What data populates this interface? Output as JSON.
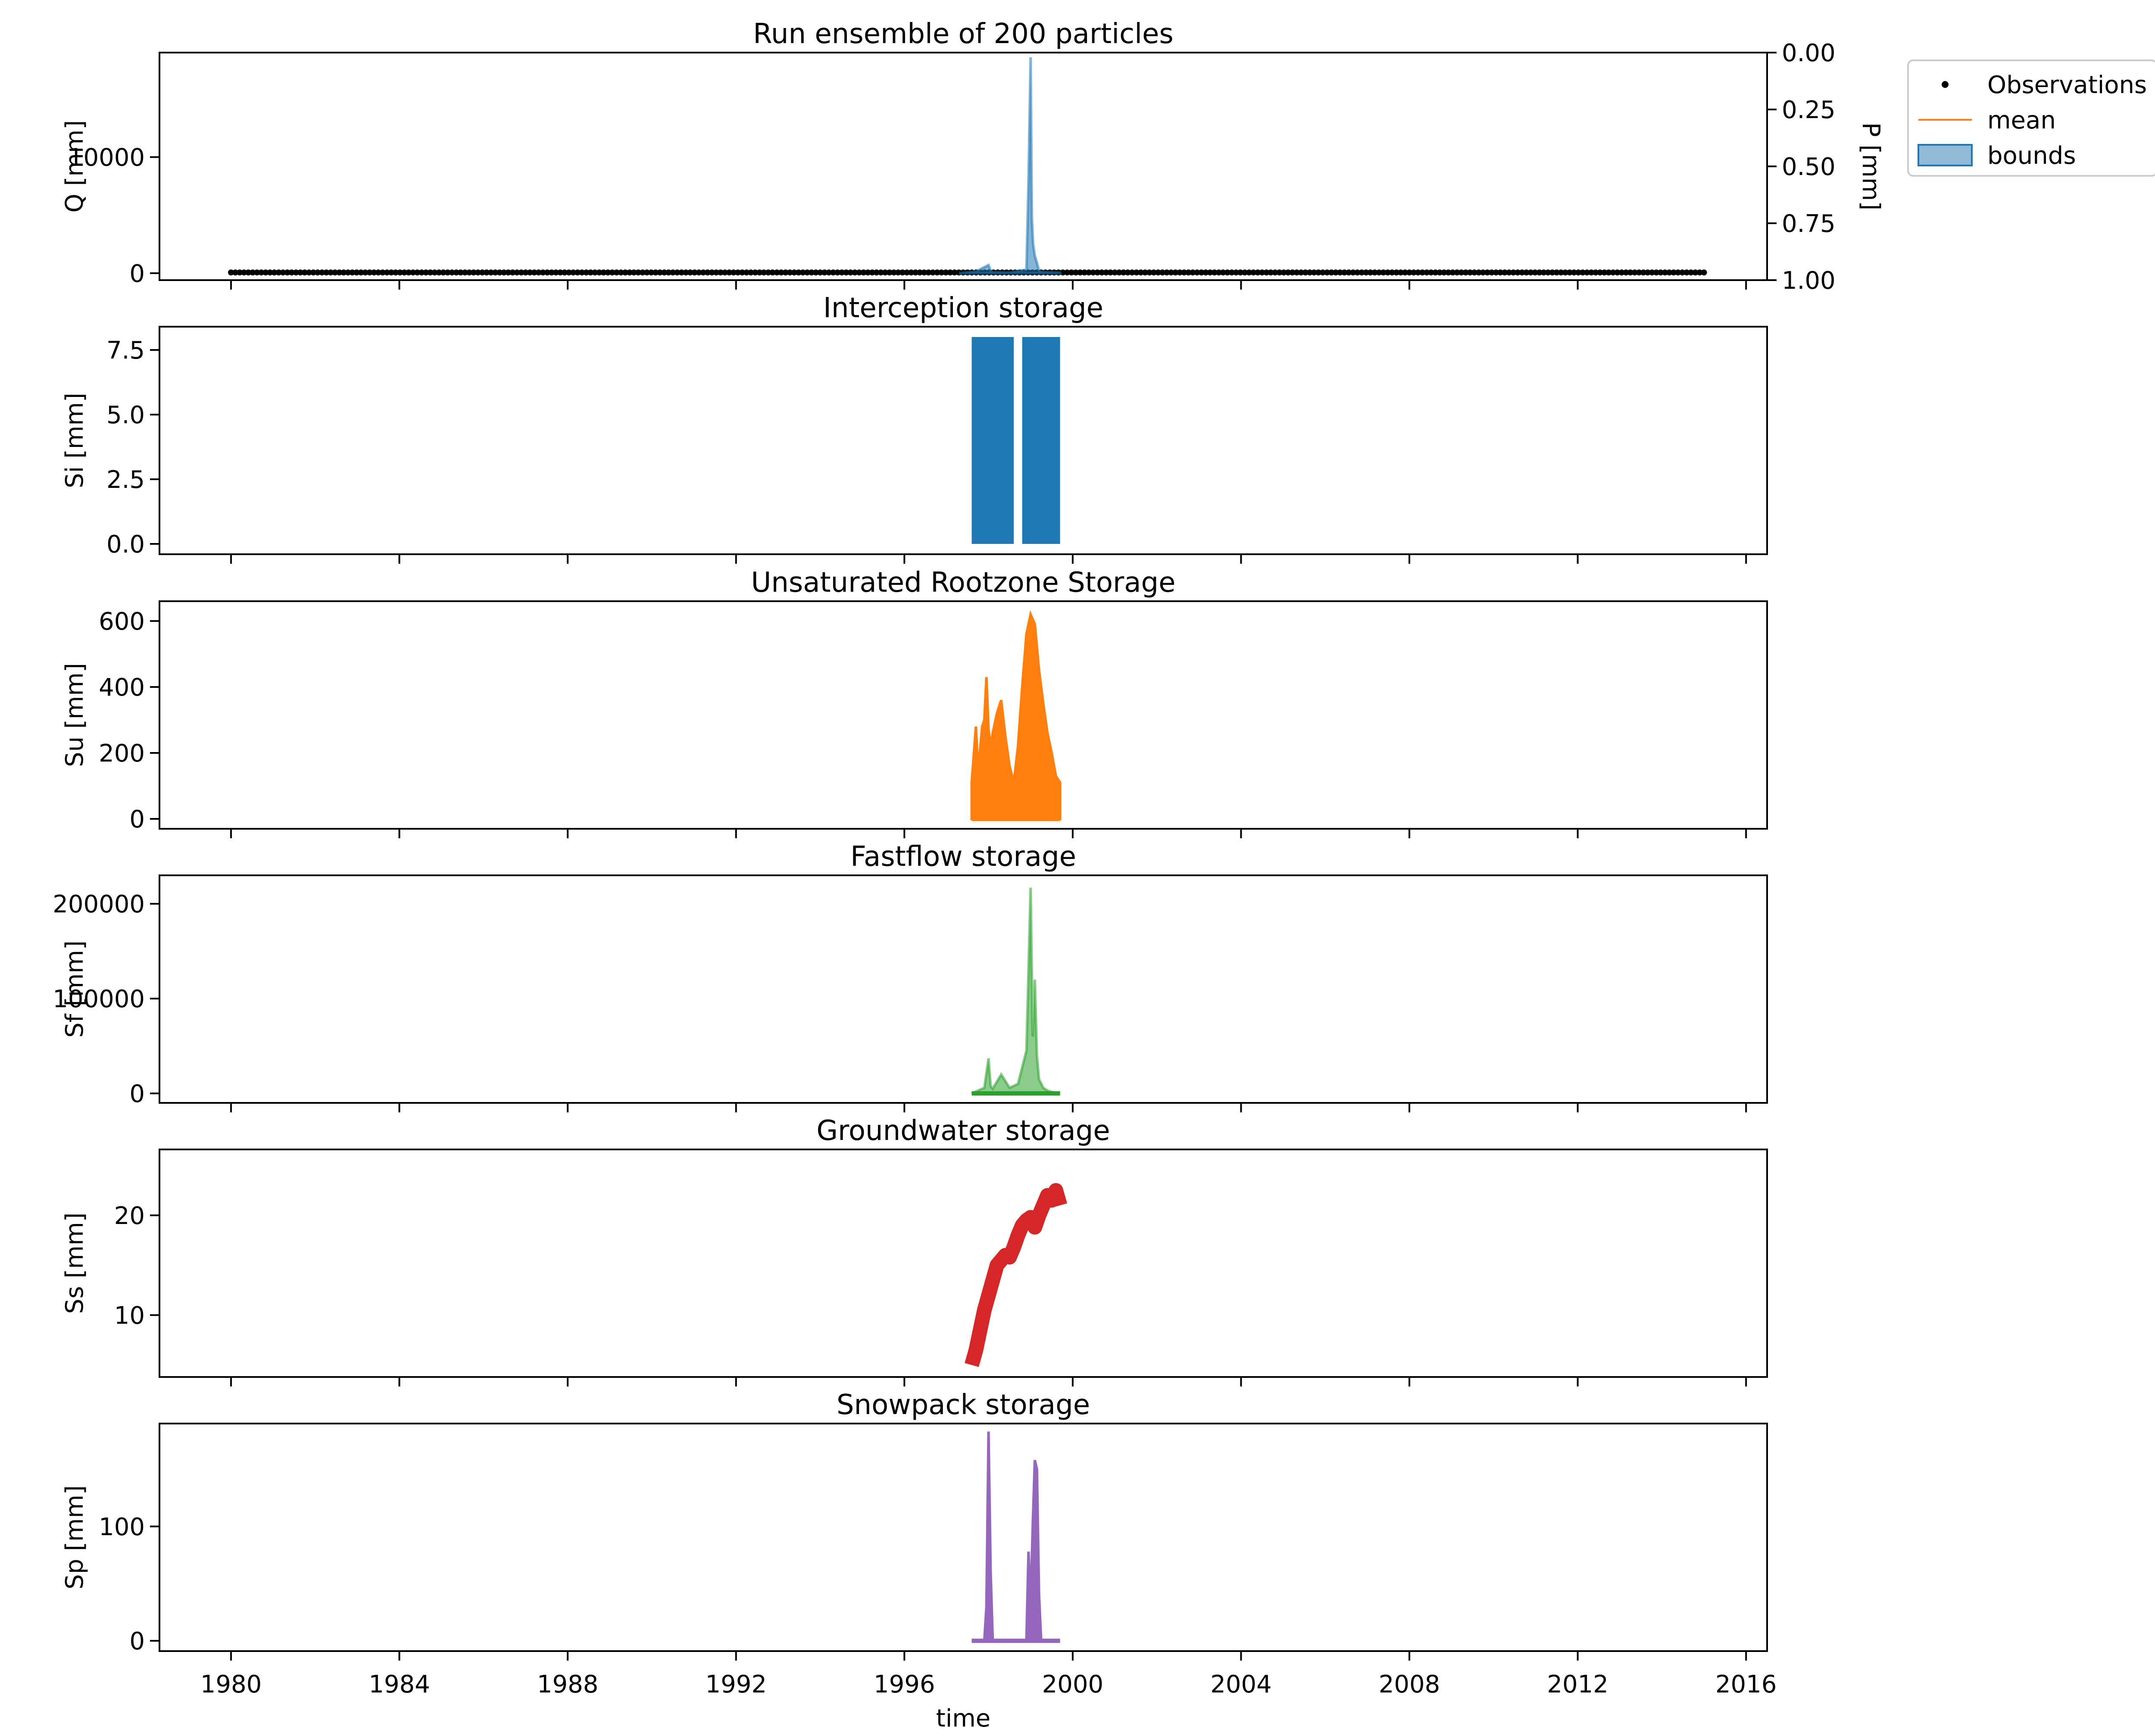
{
  "chart_data": [
    {
      "type": "line",
      "title": "Run ensemble of 200 particles",
      "ylabel": "Q [mm]",
      "ylabel_right": "P [mm]",
      "xlabel": "",
      "x_range_years": [
        1978.3,
        2016.5
      ],
      "ylim": [
        -600,
        19000
      ],
      "yticks": [
        0,
        10000
      ],
      "ylim_right_inverted": [
        0.0,
        1.0
      ],
      "yticks_right": [
        "0.00",
        "0.25",
        "0.50",
        "0.75",
        "1.00"
      ],
      "xticks": [
        "1980",
        "1984",
        "1988",
        "1992",
        "1996",
        "2000",
        "2004",
        "2008",
        "2012",
        "2016"
      ],
      "legend": {
        "placement": "outside-top-right",
        "entries": [
          {
            "label": "Observations",
            "marker": "dot",
            "color": "#000000"
          },
          {
            "label": "mean",
            "marker": "line",
            "color": "#ff7f0e"
          },
          {
            "label": "bounds",
            "marker": "patch",
            "color": "#1f77b4"
          }
        ]
      },
      "series": [
        {
          "name": "Observations",
          "color": "#000000",
          "x_range": [
            1980.0,
            2015.0
          ],
          "value_approx": 60
        },
        {
          "name": "bounds",
          "color": "#1f77b4",
          "x": [
            1997.3,
            1997.7,
            1998.0,
            1998.05,
            1998.1,
            1998.5,
            1998.9,
            1998.95,
            1999.0,
            1999.03,
            1999.06,
            1999.1,
            1999.15,
            1999.2,
            1999.3,
            1999.5,
            1999.7
          ],
          "values": [
            0,
            150,
            700,
            200,
            100,
            60,
            300,
            8000,
            18600,
            4800,
            2500,
            1500,
            900,
            200,
            100,
            80,
            50
          ]
        }
      ]
    },
    {
      "type": "line",
      "title": "Interception storage",
      "ylabel": "Si [mm]",
      "ylim": [
        -0.4,
        8.4
      ],
      "yticks": [
        "0.0",
        "2.5",
        "5.0",
        "7.5"
      ],
      "series": [
        {
          "color": "#1f77b4",
          "blocks": [
            [
              1997.6,
              1998.6
            ],
            [
              1998.8,
              1999.7
            ]
          ],
          "min": 0.0,
          "max": 8.0
        }
      ]
    },
    {
      "type": "line",
      "title": "Unsaturated Rootzone Storage",
      "ylabel": "Su [mm]",
      "ylim": [
        -30,
        660
      ],
      "yticks": [
        0,
        200,
        400,
        600
      ],
      "series": [
        {
          "color": "#ff7f0e",
          "x": [
            1997.6,
            1997.7,
            1997.75,
            1997.8,
            1997.85,
            1997.9,
            1997.95,
            1998.0,
            1998.05,
            1998.1,
            1998.2,
            1998.3,
            1998.4,
            1998.5,
            1998.6,
            1998.7,
            1998.8,
            1998.9,
            1999.0,
            1999.1,
            1999.2,
            1999.3,
            1999.4,
            1999.5,
            1999.6,
            1999.7
          ],
          "values": [
            110,
            280,
            150,
            210,
            280,
            300,
            430,
            270,
            220,
            260,
            320,
            360,
            250,
            160,
            110,
            220,
            400,
            560,
            620,
            590,
            450,
            350,
            260,
            200,
            130,
            110
          ]
        }
      ]
    },
    {
      "type": "line",
      "title": "Fastflow storage",
      "ylabel": "Sf [mm]",
      "ylim": [
        -10000,
        230000
      ],
      "yticks": [
        0,
        100000,
        200000
      ],
      "series": [
        {
          "color": "#2ca02c",
          "x": [
            1997.6,
            1997.8,
            1997.9,
            1998.0,
            1998.05,
            1998.1,
            1998.3,
            1998.5,
            1998.7,
            1998.9,
            1998.95,
            1999.0,
            1999.05,
            1999.1,
            1999.15,
            1999.2,
            1999.3,
            1999.4,
            1999.5,
            1999.7
          ],
          "values": [
            0,
            4000,
            6000,
            37000,
            8000,
            5000,
            20000,
            6000,
            10000,
            45000,
            130000,
            217000,
            60000,
            120000,
            40000,
            15000,
            6000,
            3000,
            1500,
            0
          ]
        }
      ]
    },
    {
      "type": "line",
      "title": "Groundwater storage",
      "ylabel": "Ss [mm]",
      "ylim": [
        3.8,
        26.6
      ],
      "yticks": [
        10,
        20
      ],
      "series": [
        {
          "color": "#d62728",
          "x": [
            1997.6,
            1997.7,
            1997.8,
            1997.9,
            1998.0,
            1998.1,
            1998.2,
            1998.3,
            1998.4,
            1998.5,
            1998.6,
            1998.7,
            1998.8,
            1998.9,
            1999.0,
            1999.1,
            1999.2,
            1999.3,
            1999.4,
            1999.5,
            1999.6,
            1999.7
          ],
          "values": [
            5.0,
            6.5,
            8.5,
            10.5,
            12.0,
            13.5,
            15.0,
            15.5,
            16.0,
            15.8,
            16.8,
            18.0,
            19.0,
            19.5,
            19.8,
            18.8,
            20.0,
            21.0,
            22.0,
            21.5,
            22.5,
            21.0
          ]
        }
      ]
    },
    {
      "type": "line",
      "title": "Snowpack storage",
      "ylabel": "Sp [mm]",
      "ylim": [
        -9,
        190
      ],
      "yticks": [
        0,
        100
      ],
      "xlabel": "time",
      "series": [
        {
          "color": "#9467bd",
          "x": [
            1997.6,
            1997.9,
            1997.95,
            1998.0,
            1998.05,
            1998.1,
            1998.8,
            1998.9,
            1998.95,
            1999.0,
            1999.05,
            1999.1,
            1999.15,
            1999.2,
            1999.25,
            1999.7
          ],
          "values": [
            0,
            0,
            30,
            183,
            60,
            0,
            0,
            0,
            78,
            30,
            100,
            158,
            150,
            40,
            0,
            0
          ]
        }
      ]
    }
  ]
}
